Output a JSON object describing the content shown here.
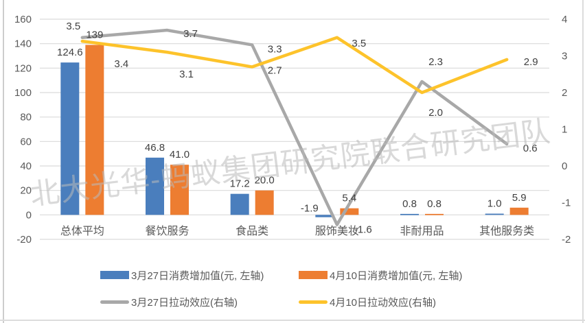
{
  "watermark": {
    "text": "北大光华-蚂蚁集团研究院联合研究团队"
  },
  "palette": {
    "grid": "#D9D9D9",
    "tick_text": "#595959",
    "data_label_text": "#3F3F3F",
    "category_text": "#595959"
  },
  "chart_data": {
    "type": "combo-bar-line",
    "categories": [
      "总体平均",
      "餐饮服务",
      "食品类",
      "服饰美妆",
      "非耐用品",
      "其他服务类"
    ],
    "series": [
      {
        "name": "3月27日消费增加值(元, 左轴)",
        "type": "bar",
        "axis": "left",
        "color": "#4A7EBD",
        "values": [
          124.6,
          46.8,
          17.2,
          -1.9,
          0.8,
          1.0
        ],
        "labels": [
          "124.6",
          "46.8",
          "17.2",
          "-1.9",
          "0.8",
          "1.0"
        ]
      },
      {
        "name": "4月10日消费增加值(元, 左轴)",
        "type": "bar",
        "axis": "left",
        "color": "#ED7D31",
        "values": [
          139,
          41.0,
          20.0,
          5.4,
          0.8,
          5.9
        ],
        "labels": [
          "139",
          "41.0",
          "20.0",
          "5.4",
          "0.8",
          "5.9"
        ]
      },
      {
        "name": "3月27日拉动效应(右轴)",
        "type": "line",
        "axis": "right",
        "color": "#A8A8A8",
        "values": [
          3.5,
          3.7,
          3.3,
          -1.6,
          2.3,
          0.6
        ],
        "labels": [
          "3.5",
          "3.7",
          "3.3",
          "-1.6",
          "2.3",
          "0.6"
        ]
      },
      {
        "name": "4月10日拉动效应(右轴)",
        "type": "line",
        "axis": "right",
        "color": "#FDC32B",
        "values": [
          3.4,
          3.1,
          2.7,
          3.5,
          2.0,
          2.9
        ],
        "labels": [
          "3.4",
          "3.1",
          "2.7",
          "3.5",
          "2.0",
          "2.9"
        ]
      }
    ],
    "left_axis": {
      "min": -20,
      "max": 160,
      "step": 20,
      "ticks": [
        "160",
        "140",
        "120",
        "100",
        "80",
        "60",
        "40",
        "20",
        "0",
        "-20"
      ]
    },
    "right_axis": {
      "min": -2,
      "max": 4,
      "step": 1,
      "ticks": [
        "4",
        "3",
        "2",
        "1",
        "0",
        "-1",
        "-2"
      ]
    },
    "grid": true,
    "legend_position": "bottom"
  }
}
